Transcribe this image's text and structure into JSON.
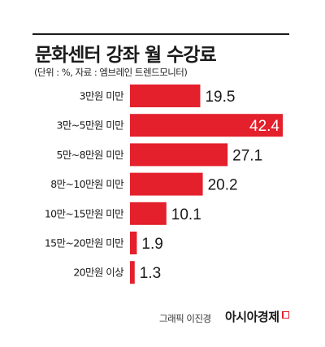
{
  "header": {
    "title": "문화센터 강좌 월 수강료",
    "subtitle": "(단위 : %, 자료 : 엠브레인 트렌드모니터)"
  },
  "footer": {
    "credit": "그래픽 이진경",
    "logo_text": "아시아경제"
  },
  "colors": {
    "bar": "#e3202b",
    "text": "#1a1a1a",
    "label_inside": "#ffffff"
  },
  "chart_data": {
    "type": "bar",
    "orientation": "horizontal",
    "title": "문화센터 강좌 월 수강료",
    "subtitle": "(단위 : %, 자료 : 엠브레인 트렌드모니터)",
    "categories": [
      "3만원 미만",
      "3만~5만원 미만",
      "5만~8만원 미만",
      "8만~10만원 미만",
      "10만~15만원 미만",
      "15만~20만원 미만",
      "20만원 이상"
    ],
    "values": [
      19.5,
      42.4,
      27.1,
      20.2,
      10.1,
      1.9,
      1.3
    ],
    "unit": "%",
    "xlim": [
      0,
      42.4
    ],
    "grid": false,
    "legend": "none"
  }
}
